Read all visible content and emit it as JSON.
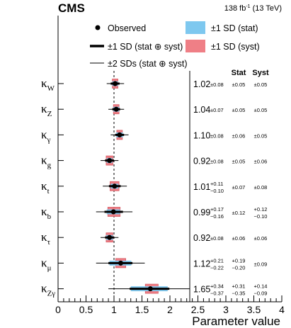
{
  "header": {
    "experiment": "CMS",
    "lumi_base": "138 fb",
    "lumi_sup": "-1",
    "lumi_energy": "(13 TeV)"
  },
  "legend": {
    "observed": "Observed",
    "stat_band": "±1 SD (stat)",
    "thick_line": "±1 SD (stat ⊕ syst)",
    "syst_band": "±1 SD (syst)",
    "thin_line": "±2 SDs (stat ⊕ syst)"
  },
  "colors": {
    "stat_band": "#7ec8ef",
    "syst_band": "#ef7f86",
    "syst_band_edge": "#d65a63",
    "line": "#000000"
  },
  "chart_data": {
    "type": "scatter",
    "xlabel": "Parameter value",
    "xlim": [
      0,
      4
    ],
    "xticks": [
      "0",
      "0.5",
      "1",
      "1.5",
      "2",
      "2.5",
      "3",
      "3.5",
      "4"
    ],
    "reference_line": 1,
    "columns": {
      "stat": "Stat",
      "syst": "Syst"
    },
    "rows": [
      {
        "param": "κ",
        "sub": "W",
        "value": 1.02,
        "tot_up": 0.08,
        "tot_dn": 0.08,
        "stat_up": 0.05,
        "stat_dn": 0.05,
        "syst_up": 0.05,
        "syst_dn": 0.05,
        "two_lo": 0.87,
        "two_hi": 1.18,
        "tot_text": "1.02",
        "tot_err": "±0.08",
        "stat_text": "±0.05",
        "syst_text": "±0.05"
      },
      {
        "param": "κ",
        "sub": "Z",
        "value": 1.04,
        "tot_up": 0.07,
        "tot_dn": 0.07,
        "stat_up": 0.05,
        "stat_dn": 0.05,
        "syst_up": 0.05,
        "syst_dn": 0.05,
        "two_lo": 0.9,
        "two_hi": 1.18,
        "tot_text": "1.04",
        "tot_err": "±0.07",
        "stat_text": "±0.05",
        "syst_text": "±0.05"
      },
      {
        "param": "κ",
        "sub": "γ",
        "value": 1.1,
        "tot_up": 0.08,
        "tot_dn": 0.08,
        "stat_up": 0.06,
        "stat_dn": 0.06,
        "syst_up": 0.05,
        "syst_dn": 0.05,
        "two_lo": 0.94,
        "two_hi": 1.26,
        "tot_text": "1.10",
        "tot_err": "±0.08",
        "stat_text": "±0.06",
        "syst_text": "±0.05"
      },
      {
        "param": "κ",
        "sub": "g",
        "value": 0.92,
        "tot_up": 0.08,
        "tot_dn": 0.08,
        "stat_up": 0.05,
        "stat_dn": 0.05,
        "syst_up": 0.06,
        "syst_dn": 0.06,
        "two_lo": 0.76,
        "two_hi": 1.08,
        "tot_text": "0.92",
        "tot_err": "±0.08",
        "stat_text": "±0.05",
        "syst_text": "±0.06"
      },
      {
        "param": "κ",
        "sub": "t",
        "value": 1.01,
        "tot_up": 0.11,
        "tot_dn": 0.1,
        "stat_up": 0.07,
        "stat_dn": 0.07,
        "syst_up": 0.08,
        "syst_dn": 0.08,
        "two_lo": 0.8,
        "two_hi": 1.23,
        "tot_text": "1.01",
        "tot_err_up": "+0.11",
        "tot_err_dn": "−0.10",
        "stat_text": "±0.07",
        "syst_text": "±0.08"
      },
      {
        "param": "κ",
        "sub": "b",
        "value": 0.99,
        "tot_up": 0.17,
        "tot_dn": 0.16,
        "stat_up": 0.12,
        "stat_dn": 0.12,
        "syst_up": 0.12,
        "syst_dn": 0.1,
        "two_lo": 0.68,
        "two_hi": 1.33,
        "tot_text": "0.99",
        "tot_err_up": "+0.17",
        "tot_err_dn": "−0.16",
        "stat_text": "±0.12",
        "syst_text_up": "+0.12",
        "syst_text_dn": "−0.10"
      },
      {
        "param": "κ",
        "sub": "τ",
        "value": 0.92,
        "tot_up": 0.08,
        "tot_dn": 0.08,
        "stat_up": 0.06,
        "stat_dn": 0.06,
        "syst_up": 0.06,
        "syst_dn": 0.06,
        "two_lo": 0.76,
        "two_hi": 1.08,
        "tot_text": "0.92",
        "tot_err": "±0.08",
        "stat_text": "±0.06",
        "syst_text": "±0.06"
      },
      {
        "param": "κ",
        "sub": "μ",
        "value": 1.12,
        "tot_up": 0.21,
        "tot_dn": 0.22,
        "stat_up": 0.19,
        "stat_dn": 0.2,
        "syst_up": 0.09,
        "syst_dn": 0.09,
        "two_lo": 0.68,
        "two_hi": 1.55,
        "tot_text": "1.12",
        "tot_err_up": "+0.21",
        "tot_err_dn": "−0.22",
        "stat_text_up": "+0.19",
        "stat_text_dn": "−0.20",
        "syst_text": "±0.09"
      },
      {
        "param": "κ",
        "sub": "Zγ",
        "value": 1.65,
        "tot_up": 0.34,
        "tot_dn": 0.37,
        "stat_up": 0.31,
        "stat_dn": 0.35,
        "syst_up": 0.14,
        "syst_dn": 0.09,
        "two_lo": 0.9,
        "two_hi": 2.35,
        "tot_text": "1.65",
        "tot_err_up": "+0.34",
        "tot_err_dn": "−0.37",
        "stat_text_up": "+0.31",
        "stat_text_dn": "−0.35",
        "syst_text_up": "+0.14",
        "syst_text_dn": "−0.09"
      }
    ]
  }
}
